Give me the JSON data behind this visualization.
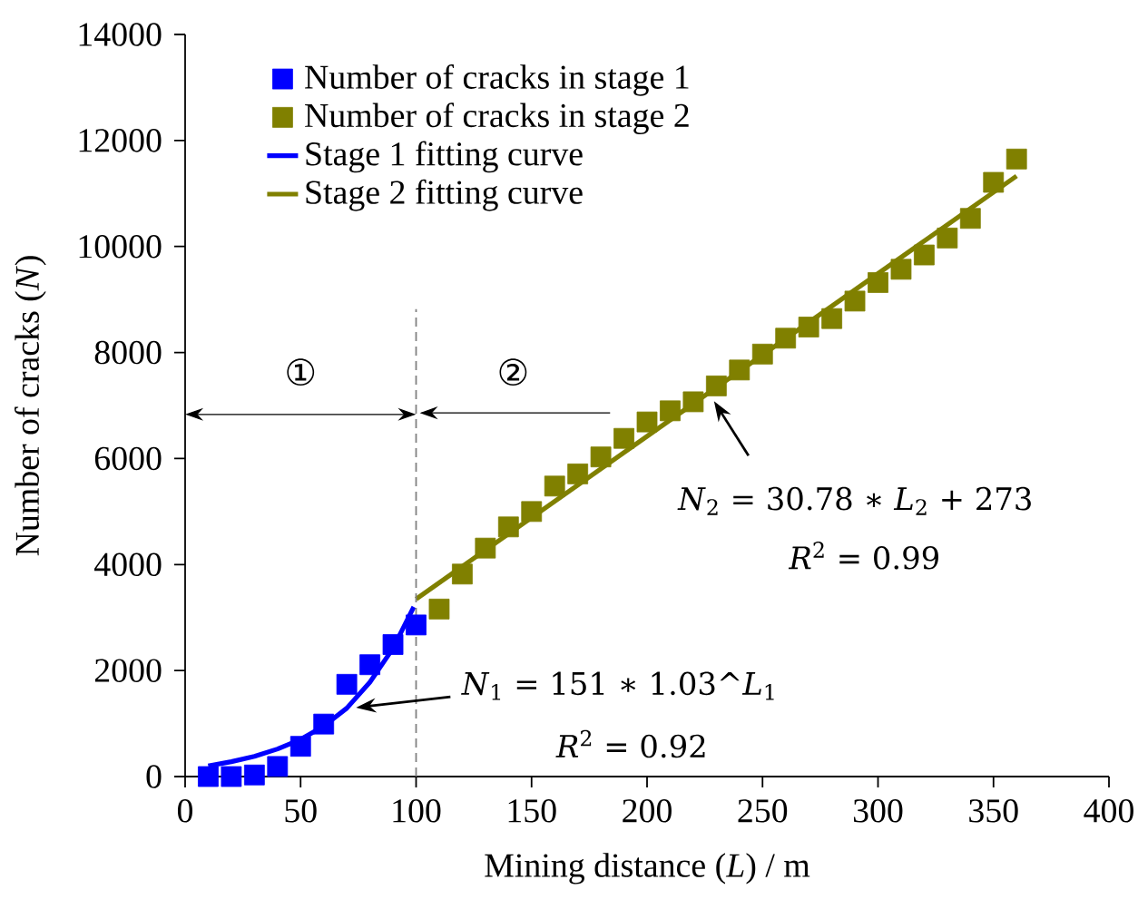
{
  "chart_data": {
    "type": "scatter",
    "xlabel": "Mining distance (*L*) / m",
    "ylabel": "Number of cracks (*N*)",
    "xlim": [
      0,
      400
    ],
    "xticks": [
      0,
      50,
      100,
      150,
      200,
      250,
      300,
      350,
      400
    ],
    "ylim": [
      0,
      14000
    ],
    "yticks": [
      0,
      2000,
      4000,
      6000,
      8000,
      10000,
      12000,
      14000
    ],
    "grid": false,
    "legend": "top left",
    "marker": "square",
    "series": [
      {
        "name": "Number of cracks in stage 1",
        "color": "#0000ff",
        "x": [
          10,
          20,
          30,
          40,
          50,
          60,
          70,
          80,
          90,
          100
        ],
        "values": [
          0,
          0,
          30,
          190,
          570,
          990,
          1740,
          2110,
          2490,
          2860
        ]
      },
      {
        "name": "Number of cracks in stage 2",
        "color": "#808000",
        "x": [
          110,
          120,
          130,
          140,
          150,
          160,
          170,
          180,
          190,
          200,
          210,
          220,
          230,
          240,
          250,
          260,
          270,
          280,
          290,
          300,
          310,
          320,
          330,
          340,
          350,
          360
        ],
        "values": [
          3160,
          3820,
          4310,
          4710,
          5000,
          5480,
          5710,
          6030,
          6380,
          6690,
          6900,
          7070,
          7370,
          7670,
          7970,
          8270,
          8480,
          8640,
          8970,
          9320,
          9570,
          9840,
          10160,
          10530,
          11210,
          11650
        ]
      },
      {
        "name": "Stage 1 fitting curve",
        "type": "line",
        "marker": "none",
        "color": "#0000ff",
        "x": [
          10,
          20,
          30,
          40,
          50,
          60,
          70,
          80,
          90,
          99
        ],
        "values": [
          200,
          280,
          380,
          520,
          700,
          950,
          1290,
          1780,
          2420,
          3200
        ]
      },
      {
        "name": "Stage 2 fitting curve",
        "type": "line",
        "marker": "none",
        "color": "#808000",
        "x": [
          100,
          360
        ],
        "values": [
          3350,
          11330
        ]
      }
    ],
    "ref_lines": [
      {
        "axis": "x",
        "value": 100,
        "color": "#808080",
        "line_style": "dashed"
      }
    ],
    "annotations": [
      {
        "text": "*N*$_{1}$ = 151 ∗ 1.03^*L*$_{1}$",
        "x": 74,
        "y": 1300
      },
      "*R*$^{2}$ = 0.92",
      {
        "text": "*N*$_{2}$ = 30.78 ∗ *L*$_{2}$ + 273",
        "x": 229,
        "y": 7080
      },
      "*R*$^{2}$ = 0.99",
      "①",
      "②"
    ]
  }
}
